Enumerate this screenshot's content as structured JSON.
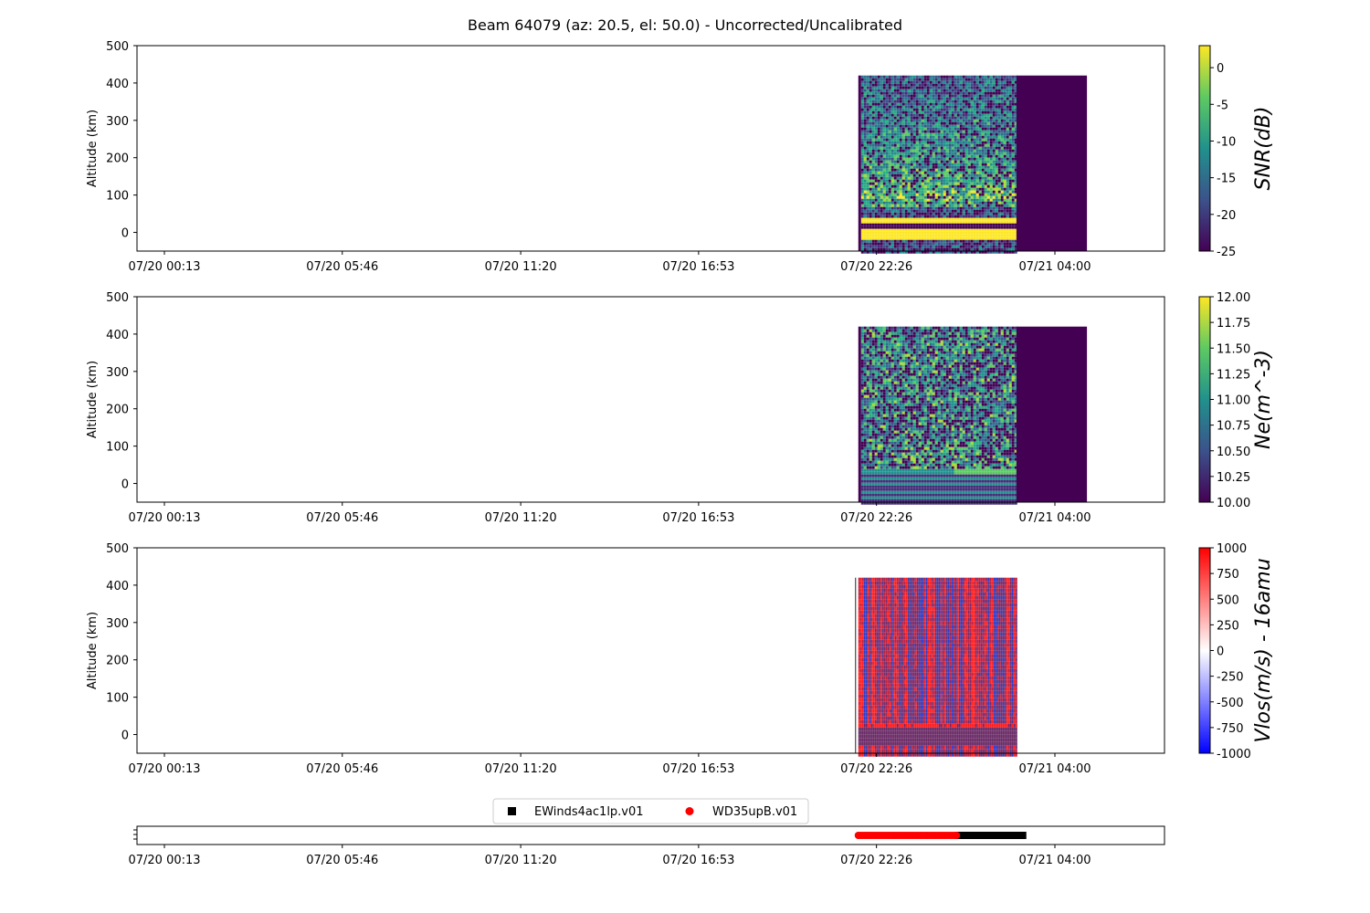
{
  "title": "Beam 64079 (az: 20.5, el: 50.0) - Uncorrected/Uncalibrated",
  "chart_data": [
    {
      "type": "heatmap",
      "ylabel": "Altitude (km)",
      "ylim": [
        -50,
        500
      ],
      "yticks": [
        0,
        100,
        200,
        300,
        400,
        500
      ],
      "xticks": [
        "07/20 00:13",
        "07/20 05:46",
        "07/20 11:20",
        "07/20 16:53",
        "07/20 22:26",
        "07/21 04:00"
      ],
      "data_range": {
        "start": "07/20 21:52",
        "data_end": "07/21 02:48",
        "fill_end": "07/21 05:00",
        "top_km": 420
      },
      "colorbar": {
        "label": "SNR(dB)",
        "ticks": [
          0,
          -5,
          -10,
          -15,
          -20,
          -25
        ],
        "range": [
          -25,
          3
        ],
        "colormap": "viridis"
      },
      "features": [
        {
          "name": "E-region layer",
          "altitude_km": [
            85,
            115
          ]
        },
        {
          "name": "saturated band",
          "altitude_km": [
            -20,
            15
          ]
        },
        {
          "name": "saturated band",
          "altitude_km": [
            30,
            40
          ]
        }
      ]
    },
    {
      "type": "heatmap",
      "ylabel": "Altitude (km)",
      "ylim": [
        -50,
        500
      ],
      "yticks": [
        0,
        100,
        200,
        300,
        400,
        500
      ],
      "xticks": [
        "07/20 00:13",
        "07/20 05:46",
        "07/20 11:20",
        "07/20 16:53",
        "07/20 22:26",
        "07/21 04:00"
      ],
      "data_range": {
        "start": "07/20 21:52",
        "data_end": "07/21 02:48",
        "fill_end": "07/21 05:00",
        "top_km": 420
      },
      "colorbar": {
        "label": "Ne(m^-3)",
        "ticks": [
          "12.00",
          "11.75",
          "11.50",
          "11.25",
          "11.00",
          "10.75",
          "10.50",
          "10.25",
          "10.00"
        ],
        "range": [
          10,
          12
        ],
        "colormap": "viridis"
      }
    },
    {
      "type": "heatmap",
      "ylabel": "Altitude (km)",
      "ylim": [
        -50,
        500
      ],
      "yticks": [
        0,
        100,
        200,
        300,
        400,
        500
      ],
      "xticks": [
        "07/20 00:13",
        "07/20 05:46",
        "07/20 11:20",
        "07/20 16:53",
        "07/20 22:26",
        "07/21 04:00"
      ],
      "data_range": {
        "start": "07/20 21:52",
        "data_end": "07/21 02:48",
        "top_km": 420
      },
      "colorbar": {
        "label": "Vlos(m/s) - 16amu",
        "ticks": [
          1000,
          750,
          500,
          250,
          0,
          -250,
          -500,
          -750,
          -1000
        ],
        "range": [
          -1000,
          1000
        ],
        "colormap": "bwr"
      }
    },
    {
      "type": "scatter",
      "xticks": [
        "07/20 00:13",
        "07/20 05:46",
        "07/20 11:20",
        "07/20 16:53",
        "07/20 22:26",
        "07/21 04:00"
      ],
      "legend": {
        "placement": "top-center"
      },
      "series": [
        {
          "name": "EWinds4ac1lp.v01",
          "color": "#000000",
          "marker": "square",
          "x_range": [
            "07/21 01:00",
            "07/21 03:00"
          ]
        },
        {
          "name": "WD35upB.v01",
          "color": "#ff0000",
          "marker": "circle",
          "x_range": [
            "07/20 21:52",
            "07/21 01:00"
          ]
        }
      ]
    }
  ]
}
